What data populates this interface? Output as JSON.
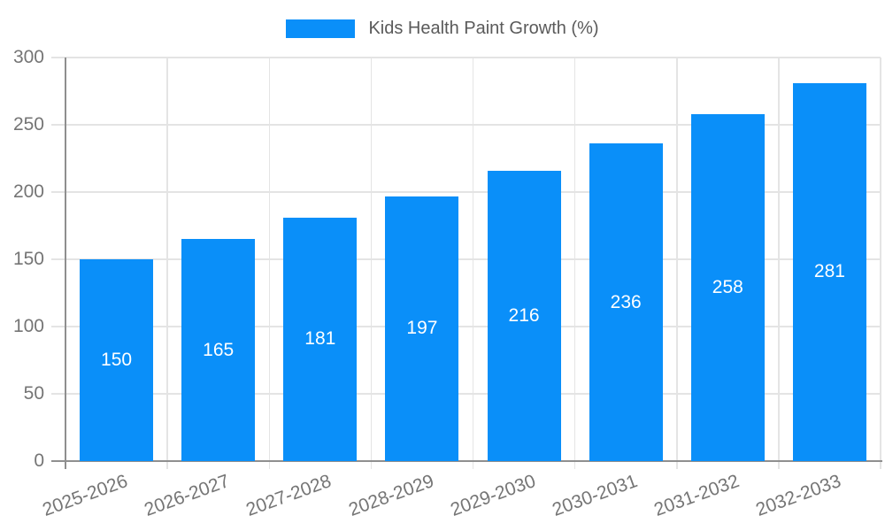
{
  "chart_data": {
    "type": "bar",
    "title": "Kids Health Paint Growth (%)",
    "legend": {
      "label": "Kids Health Paint Growth (%)",
      "position": "top"
    },
    "categories": [
      "2025-2026",
      "2026-2027",
      "2027-2028",
      "2028-2029",
      "2029-2030",
      "2030-2031",
      "2031-2032",
      "2032-2033"
    ],
    "series": [
      {
        "name": "Kids Health Paint Growth (%)",
        "values": [
          150,
          165,
          181,
          197,
          216,
          236,
          258,
          281
        ]
      }
    ],
    "value_labels": [
      "150",
      "165",
      "181",
      "197",
      "216",
      "236",
      "258",
      "281"
    ],
    "xlabel": "",
    "ylabel": "",
    "ylim": [
      0,
      300
    ],
    "yticks": [
      0,
      50,
      100,
      150,
      200,
      250,
      300
    ],
    "grid": true,
    "colors": {
      "bar": "#0a8ff9",
      "grid": "#e4e4e4",
      "axis": "#8f8f8f",
      "tick_label": "#757575",
      "value_label": "#ffffff",
      "legend_text": "#5a5a5a",
      "background": "#ffffff"
    }
  }
}
